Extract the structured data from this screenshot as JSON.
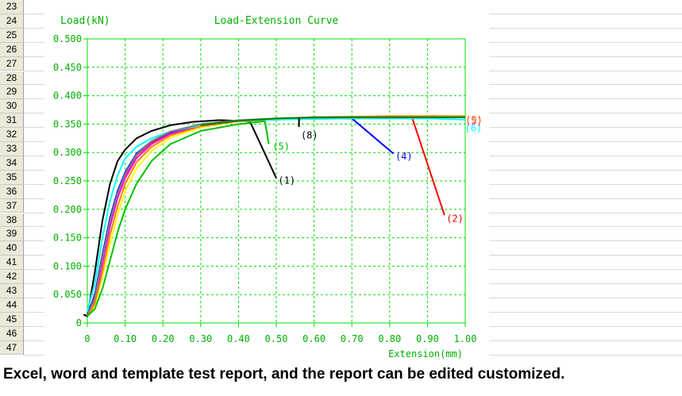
{
  "row_numbers": [
    "23",
    "24",
    "25",
    "26",
    "27",
    "28",
    "29",
    "30",
    "31",
    "32",
    "33",
    "34",
    "35",
    "36",
    "37",
    "38",
    "39",
    "40",
    "41",
    "42",
    "43",
    "44",
    "45",
    "46",
    "47"
  ],
  "caption": "Excel, word and template test report, and the report can be edited customized.",
  "colors": {
    "axis": "#00e000",
    "grid": "#00e000",
    "text": "#00b000",
    "background": "#ffffff"
  },
  "chart_data": {
    "type": "line",
    "title": "Load-Extension Curve",
    "xlabel": "Extension(mm)",
    "ylabel": "Load(kN)",
    "xlim": [
      0,
      1.0
    ],
    "ylim": [
      0,
      0.5
    ],
    "grid": true,
    "x_ticks": [
      "0",
      "0.10",
      "0.20",
      "0.30",
      "0.40",
      "0.50",
      "0.60",
      "0.70",
      "0.80",
      "0.90",
      "1.00"
    ],
    "y_ticks": [
      "0",
      "0.050",
      "0.100",
      "0.150",
      "0.200",
      "0.250",
      "0.300",
      "0.350",
      "0.400",
      "0.450",
      "0.500"
    ],
    "series": [
      {
        "color": "#000000",
        "x": [
          -0.01,
          0.0,
          0.02,
          0.04,
          0.06,
          0.08,
          0.1,
          0.13,
          0.17,
          0.22,
          0.28,
          0.35,
          0.43
        ],
        "y": [
          0.015,
          0.012,
          0.09,
          0.18,
          0.245,
          0.285,
          0.305,
          0.325,
          0.338,
          0.348,
          0.354,
          0.357,
          0.355
        ]
      },
      {
        "color": "#000000",
        "x": [
          0.43,
          0.5
        ],
        "y": [
          0.355,
          0.255
        ]
      },
      {
        "color": "#ff0000",
        "x": [
          0.0,
          0.02,
          0.04,
          0.06,
          0.08,
          0.1,
          0.13,
          0.17,
          0.22,
          0.3,
          0.4,
          0.5,
          0.6,
          0.7,
          0.8,
          0.86
        ],
        "y": [
          0.012,
          0.04,
          0.11,
          0.175,
          0.225,
          0.26,
          0.295,
          0.318,
          0.335,
          0.348,
          0.355,
          0.358,
          0.36,
          0.36,
          0.36,
          0.36
        ]
      },
      {
        "color": "#ff0000",
        "x": [
          0.86,
          0.945
        ],
        "y": [
          0.36,
          0.19
        ]
      },
      {
        "color": "#ff00ff",
        "x": [
          0.0,
          0.02,
          0.04,
          0.06,
          0.08,
          0.1,
          0.13,
          0.17,
          0.22,
          0.3,
          0.4,
          0.5,
          0.6,
          0.7,
          0.8,
          0.9,
          1.0
        ],
        "y": [
          0.012,
          0.04,
          0.105,
          0.17,
          0.22,
          0.255,
          0.29,
          0.315,
          0.333,
          0.346,
          0.355,
          0.36,
          0.362,
          0.363,
          0.363,
          0.363,
          0.363
        ]
      },
      {
        "color": "#0000ff",
        "x": [
          0.0,
          0.02,
          0.04,
          0.06,
          0.08,
          0.1,
          0.13,
          0.17,
          0.22,
          0.3,
          0.4,
          0.5,
          0.6,
          0.7
        ],
        "y": [
          0.012,
          0.05,
          0.12,
          0.185,
          0.232,
          0.265,
          0.298,
          0.32,
          0.336,
          0.349,
          0.356,
          0.359,
          0.36,
          0.36
        ]
      },
      {
        "color": "#0000ff",
        "x": [
          0.7,
          0.81
        ],
        "y": [
          0.36,
          0.298
        ]
      },
      {
        "color": "#00ffff",
        "x": [
          0.0,
          0.02,
          0.04,
          0.06,
          0.08,
          0.1,
          0.13,
          0.17,
          0.22,
          0.3,
          0.4,
          0.5,
          0.6,
          0.7,
          0.8,
          0.9,
          1.0
        ],
        "y": [
          0.02,
          0.07,
          0.15,
          0.215,
          0.26,
          0.29,
          0.31,
          0.325,
          0.337,
          0.348,
          0.355,
          0.358,
          0.359,
          0.36,
          0.36,
          0.36,
          0.358
        ]
      },
      {
        "color": "#808080",
        "x": [
          0.0,
          0.02,
          0.04,
          0.06,
          0.08,
          0.1,
          0.13,
          0.17,
          0.22,
          0.3,
          0.4,
          0.5,
          0.6,
          0.7,
          0.8,
          0.9,
          1.0
        ],
        "y": [
          0.012,
          0.045,
          0.115,
          0.18,
          0.228,
          0.262,
          0.296,
          0.32,
          0.337,
          0.35,
          0.357,
          0.36,
          0.361,
          0.362,
          0.362,
          0.362,
          0.362
        ]
      },
      {
        "color": "#ffff00",
        "x": [
          0.0,
          0.02,
          0.04,
          0.06,
          0.08,
          0.1,
          0.13,
          0.17,
          0.22,
          0.3,
          0.4,
          0.5,
          0.6,
          0.7,
          0.8,
          0.9,
          1.0
        ],
        "y": [
          0.012,
          0.03,
          0.08,
          0.14,
          0.19,
          0.232,
          0.272,
          0.303,
          0.326,
          0.344,
          0.355,
          0.36,
          0.362,
          0.363,
          0.364,
          0.364,
          0.364
        ]
      },
      {
        "color": "#ff8000",
        "x": [
          0.0,
          0.02,
          0.04,
          0.06,
          0.08,
          0.1,
          0.13,
          0.17,
          0.22,
          0.3,
          0.4,
          0.5,
          0.6,
          0.7,
          0.8,
          0.9,
          1.0
        ],
        "y": [
          0.012,
          0.035,
          0.09,
          0.155,
          0.205,
          0.245,
          0.283,
          0.31,
          0.33,
          0.346,
          0.355,
          0.36,
          0.362,
          0.363,
          0.364,
          0.364,
          0.364
        ]
      },
      {
        "color": "#00c000",
        "x": [
          0.0,
          0.02,
          0.04,
          0.06,
          0.08,
          0.1,
          0.13,
          0.17,
          0.22,
          0.3,
          0.4,
          0.47
        ],
        "y": [
          0.012,
          0.025,
          0.06,
          0.11,
          0.16,
          0.2,
          0.245,
          0.285,
          0.315,
          0.338,
          0.35,
          0.355
        ]
      },
      {
        "color": "#00c000",
        "x": [
          0.47,
          0.48
        ],
        "y": [
          0.355,
          0.315
        ]
      },
      {
        "color": "#008000",
        "x": [
          0.3,
          0.4,
          0.5,
          0.55,
          0.6,
          0.7,
          0.8,
          0.9,
          1.0
        ],
        "y": [
          0.348,
          0.356,
          0.36,
          0.361,
          0.362,
          0.362,
          0.362,
          0.362,
          0.362
        ]
      },
      {
        "color": "#000000",
        "x": [
          0.56,
          0.56
        ],
        "y": [
          0.36,
          0.345
        ]
      }
    ],
    "annotations": [
      {
        "text": "(1)",
        "x": 0.505,
        "y": 0.245,
        "color": "#000000"
      },
      {
        "text": "(2)",
        "x": 0.95,
        "y": 0.178,
        "color": "#ff0000"
      },
      {
        "text": "(4)",
        "x": 0.815,
        "y": 0.288,
        "color": "#0000ff"
      },
      {
        "text": "(5)",
        "x": 0.49,
        "y": 0.305,
        "color": "#00c000"
      },
      {
        "text": "(8)",
        "x": 0.565,
        "y": 0.325,
        "color": "#000000"
      },
      {
        "text": "(6)",
        "x": 0.999,
        "y": 0.337,
        "color": "#00ffff"
      },
      {
        "text": "(5)",
        "x": 1.0,
        "y": 0.35,
        "color": "#ff00ff"
      },
      {
        "text": "(9)",
        "x": 1.0,
        "y": 0.352,
        "color": "#ff8000"
      }
    ]
  }
}
